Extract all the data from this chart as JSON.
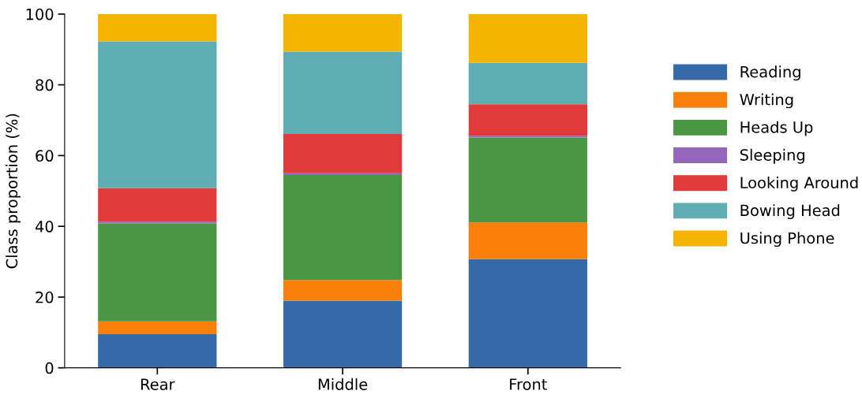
{
  "chart_data": {
    "type": "bar",
    "stacked": true,
    "ylabel": "Class proportion (%)",
    "categories": [
      "Rear",
      "Middle",
      "Front"
    ],
    "series": [
      {
        "name": "Reading",
        "color": "#3569a8",
        "values": [
          9.5,
          19.0,
          30.7
        ]
      },
      {
        "name": "Writing",
        "color": "#f77f0a",
        "values": [
          3.6,
          5.8,
          10.4
        ]
      },
      {
        "name": "Heads Up",
        "color": "#4a9644",
        "values": [
          27.7,
          29.7,
          24.0
        ]
      },
      {
        "name": "Sleeping",
        "color": "#9467bd",
        "values": [
          0.5,
          0.5,
          0.5
        ]
      },
      {
        "name": "Looking Around",
        "color": "#e03a3a",
        "values": [
          9.5,
          11.1,
          8.9
        ]
      },
      {
        "name": "Bowing Head",
        "color": "#5eadb2",
        "values": [
          41.5,
          23.3,
          11.7
        ]
      },
      {
        "name": "Using Phone",
        "color": "#f4b400",
        "values": [
          7.7,
          10.6,
          13.8
        ]
      }
    ],
    "ylim": [
      0,
      100
    ],
    "yticks": [
      0,
      20,
      40,
      60,
      80,
      100
    ],
    "grid": false,
    "legend": "right"
  }
}
